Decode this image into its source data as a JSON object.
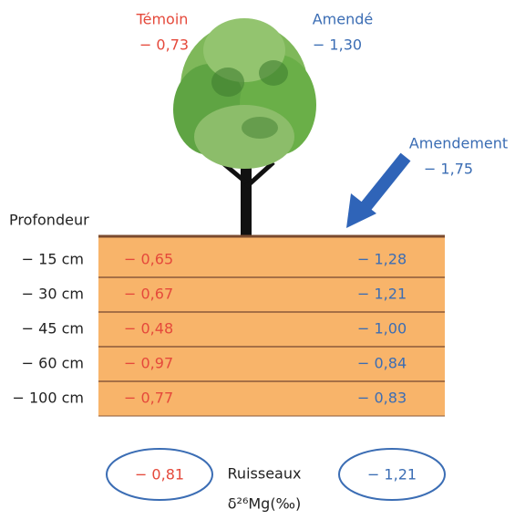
{
  "header": {
    "temoin": "Témoin",
    "temoin_value": "− 0,73",
    "amende": "Amendé",
    "amende_value": "− 1,30"
  },
  "amendement": {
    "label": "Amendement",
    "value": "− 1,75"
  },
  "depth_title": "Profondeur",
  "rows": [
    [
      "− 15 cm",
      "− 0,65",
      "− 1,28"
    ],
    [
      "− 30 cm",
      "− 0,67",
      "− 1,21"
    ],
    [
      "− 45 cm",
      "− 0,48",
      "− 1,00"
    ],
    [
      "− 60 cm",
      "− 0,97",
      "− 0,84"
    ],
    [
      "− 100 cm",
      "− 0,77",
      "− 0,83"
    ]
  ],
  "streams": {
    "temoin_value": "− 0,81",
    "label": "Ruisseaux",
    "amende_value": "− 1,21"
  },
  "unit": "δ²⁶Mg(‰)"
}
